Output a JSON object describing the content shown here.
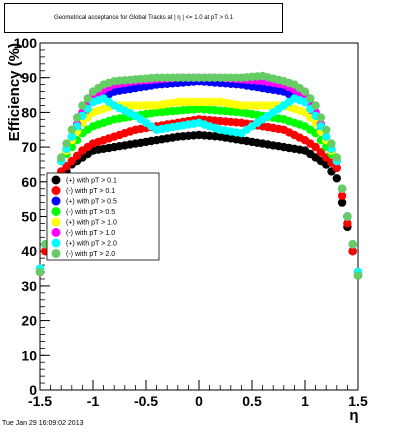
{
  "title": "Geometrical acceptance for Global Tracks at | η | <= 1.0 at pT > 0.1",
  "timestamp": "Tue Jan 29 16:09:02 2013",
  "chart_data": {
    "type": "scatter",
    "xlabel": "η",
    "ylabel": "Efficiency (%)",
    "xlim": [
      -1.5,
      1.5
    ],
    "ylim": [
      0,
      100
    ],
    "x_ticks": [
      "-1.5",
      "-1",
      "-0.5",
      "0",
      "0.5",
      "1",
      "1.5"
    ],
    "y_ticks": [
      "0",
      "10",
      "20",
      "30",
      "40",
      "50",
      "60",
      "70",
      "80",
      "90",
      "100"
    ],
    "legend_placement": "center-left",
    "series": [
      {
        "name": "(+) with pT > 0.1",
        "color": "#000000",
        "x": [
          -1.5,
          -1.45,
          -1.4,
          -1.35,
          -1.3,
          -1.2,
          -1.1,
          -1.0,
          -0.8,
          -0.6,
          -0.4,
          -0.2,
          0.0,
          0.2,
          0.4,
          0.6,
          0.8,
          1.0,
          1.1,
          1.2,
          1.3,
          1.35,
          1.4,
          1.45,
          1.5
        ],
        "y": [
          34,
          40,
          47,
          54,
          61,
          65,
          67,
          69,
          70,
          71,
          72,
          73,
          73.5,
          73,
          72,
          71,
          70,
          69,
          67,
          65,
          61,
          54,
          47,
          40,
          33
        ]
      },
      {
        "name": "(-) with pT > 0.1",
        "color": "#ff0000",
        "x": [
          -1.5,
          -1.45,
          -1.4,
          -1.35,
          -1.3,
          -1.2,
          -1.1,
          -1.0,
          -0.8,
          -0.6,
          -0.4,
          -0.2,
          0.0,
          0.2,
          0.4,
          0.6,
          0.8,
          1.0,
          1.1,
          1.2,
          1.3,
          1.35,
          1.4,
          1.45,
          1.5
        ],
        "y": [
          34,
          40,
          48,
          56,
          63,
          66,
          69,
          71,
          73,
          75,
          76,
          77,
          78,
          77.5,
          77,
          76,
          75,
          72,
          70,
          67,
          64,
          56,
          48,
          40,
          33
        ]
      },
      {
        "name": "(+) with pT > 0.5",
        "color": "#0000ff",
        "x": [
          -1.5,
          -1.45,
          -1.4,
          -1.35,
          -1.3,
          -1.2,
          -1.1,
          -1.0,
          -0.8,
          -0.6,
          -0.4,
          -0.2,
          0.0,
          0.2,
          0.4,
          0.6,
          0.8,
          1.0,
          1.1,
          1.2,
          1.3,
          1.35,
          1.4,
          1.45,
          1.5
        ],
        "y": [
          35,
          42,
          50,
          58,
          66,
          72,
          78,
          83,
          86,
          87,
          88,
          88.5,
          89,
          88.5,
          88,
          87,
          86,
          83,
          78,
          72,
          66,
          58,
          50,
          42,
          34
        ]
      },
      {
        "name": "(-) with pT > 0.5",
        "color": "#00ff00",
        "x": [
          -1.5,
          -1.45,
          -1.4,
          -1.35,
          -1.3,
          -1.2,
          -1.1,
          -1.0,
          -0.8,
          -0.6,
          -0.4,
          -0.2,
          0.0,
          0.2,
          0.4,
          0.6,
          0.8,
          1.0,
          1.1,
          1.2,
          1.3,
          1.35,
          1.4,
          1.45,
          1.5
        ],
        "y": [
          35,
          42,
          50,
          58,
          66,
          70,
          74,
          76,
          78,
          79,
          80,
          80.5,
          81,
          80.5,
          80,
          79,
          78,
          76,
          74,
          70,
          66,
          58,
          50,
          42,
          34
        ]
      },
      {
        "name": "(+) with pT > 1.0",
        "color": "#ffff00",
        "x": [
          -1.5,
          -1.45,
          -1.4,
          -1.35,
          -1.3,
          -1.2,
          -1.1,
          -1.0,
          -0.8,
          -0.6,
          -0.4,
          -0.2,
          0.0,
          0.2,
          0.4,
          0.6,
          0.8,
          1.0,
          1.1,
          1.2,
          1.3,
          1.35,
          1.4,
          1.45,
          1.5
        ],
        "y": [
          35,
          42,
          50,
          58,
          66,
          72,
          77,
          80,
          82,
          82,
          82,
          83,
          83,
          83,
          82,
          82,
          82,
          80,
          77,
          72,
          66,
          58,
          50,
          42,
          34
        ]
      },
      {
        "name": "(-) with pT > 1.0",
        "color": "#ff00ff",
        "x": [
          -1.5,
          -1.45,
          -1.4,
          -1.35,
          -1.3,
          -1.2,
          -1.1,
          -1.0,
          -0.8,
          -0.6,
          -0.4,
          -0.2,
          0.0,
          0.2,
          0.4,
          0.6,
          0.8,
          1.0,
          1.1,
          1.2,
          1.3,
          1.35,
          1.4,
          1.45,
          1.5
        ],
        "y": [
          35,
          42,
          50,
          58,
          66,
          73,
          80,
          85,
          88,
          89,
          89.5,
          90,
          90,
          90,
          89.5,
          89,
          88,
          85,
          80,
          73,
          66,
          58,
          50,
          42,
          34
        ]
      },
      {
        "name": "(+) with pT > 2.0",
        "color": "#00ffff",
        "x": [
          -1.5,
          -1.45,
          -1.4,
          -1.35,
          -1.3,
          -1.2,
          -1.1,
          -1.0,
          -0.9,
          -0.8,
          -0.6,
          -0.4,
          -0.2,
          0.0,
          0.2,
          0.4,
          0.6,
          0.8,
          0.9,
          1.0,
          1.1,
          1.2,
          1.3,
          1.35,
          1.4,
          1.45,
          1.5
        ],
        "y": [
          35,
          42,
          50,
          58,
          66,
          73,
          79,
          83,
          84,
          82,
          79,
          75,
          76,
          77,
          75,
          74,
          78,
          82,
          84,
          83,
          79,
          73,
          66,
          58,
          50,
          42,
          34
        ]
      },
      {
        "name": "(-) with pT > 2.0",
        "color": "#66cc66",
        "x": [
          -1.5,
          -1.45,
          -1.4,
          -1.35,
          -1.3,
          -1.2,
          -1.1,
          -1.0,
          -0.9,
          -0.8,
          -0.6,
          -0.4,
          -0.2,
          0.0,
          0.2,
          0.4,
          0.6,
          0.8,
          0.9,
          1.0,
          1.1,
          1.2,
          1.3,
          1.35,
          1.4,
          1.45,
          1.5
        ],
        "y": [
          34,
          42,
          50,
          58,
          67,
          75,
          82,
          86,
          88,
          89,
          89.5,
          90,
          90,
          90,
          90,
          90,
          90.5,
          89,
          88,
          86,
          82,
          75,
          67,
          58,
          50,
          42,
          33
        ]
      }
    ]
  }
}
